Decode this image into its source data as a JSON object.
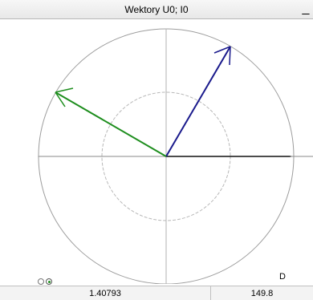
{
  "window": {
    "title": "Wektory U0; I0",
    "minimize_label": "_"
  },
  "phasor_plot": {
    "quadrant_label": "D",
    "colors": {
      "grid": "#9d9d9d",
      "reference_axis": "#111111",
      "vector_u0": "#1a1a8c",
      "vector_i0": "#1e8e1e",
      "dashed_circle": "#b8b8b8"
    }
  },
  "status": {
    "value_1": "1.40793",
    "value_2": "149.8"
  }
}
